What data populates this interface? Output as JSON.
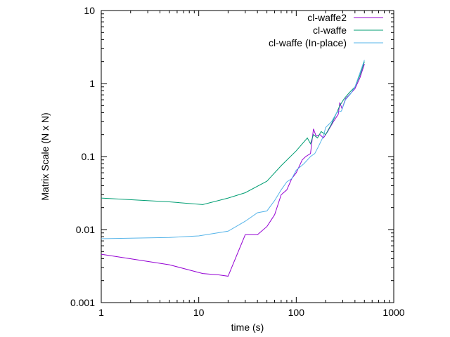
{
  "chart_data": {
    "type": "line",
    "xlabel": "time (s)",
    "ylabel": "Matrix Scale (N x N)",
    "xscale": "log",
    "yscale": "log",
    "xlim": [
      1,
      1000
    ],
    "ylim": [
      0.001,
      10
    ],
    "xticks": [
      {
        "value": 1,
        "label": "1"
      },
      {
        "value": 10,
        "label": "10"
      },
      {
        "value": 100,
        "label": "100"
      },
      {
        "value": 1000,
        "label": "1000"
      }
    ],
    "yticks": [
      {
        "value": 0.001,
        "label": "0.001"
      },
      {
        "value": 0.01,
        "label": "0.01"
      },
      {
        "value": 0.1,
        "label": "0.1"
      },
      {
        "value": 1,
        "label": "1"
      },
      {
        "value": 10,
        "label": "10"
      }
    ],
    "grid": false,
    "legend_position": "top-right",
    "series": [
      {
        "name": "cl-waffe2",
        "color": "#9400d3",
        "points": [
          [
            1,
            0.0046
          ],
          [
            5,
            0.0033
          ],
          [
            11,
            0.0025
          ],
          [
            16,
            0.0024
          ],
          [
            20,
            0.0023
          ],
          [
            30,
            0.0085
          ],
          [
            40,
            0.0085
          ],
          [
            50,
            0.011
          ],
          [
            60,
            0.016
          ],
          [
            70,
            0.03
          ],
          [
            80,
            0.035
          ],
          [
            90,
            0.05
          ],
          [
            100,
            0.06
          ],
          [
            115,
            0.09
          ],
          [
            125,
            0.1
          ],
          [
            140,
            0.11
          ],
          [
            150,
            0.24
          ],
          [
            160,
            0.19
          ],
          [
            175,
            0.2
          ],
          [
            190,
            0.18
          ],
          [
            210,
            0.22
          ],
          [
            240,
            0.3
          ],
          [
            270,
            0.38
          ],
          [
            280,
            0.55
          ],
          [
            295,
            0.45
          ],
          [
            320,
            0.62
          ],
          [
            350,
            0.7
          ],
          [
            400,
            0.85
          ],
          [
            450,
            1.2
          ],
          [
            500,
            1.85
          ]
        ]
      },
      {
        "name": "cl-waffe",
        "color": "#009e73",
        "points": [
          [
            1,
            0.027
          ],
          [
            5,
            0.024
          ],
          [
            11,
            0.022
          ],
          [
            20,
            0.027
          ],
          [
            30,
            0.032
          ],
          [
            50,
            0.046
          ],
          [
            70,
            0.075
          ],
          [
            100,
            0.12
          ],
          [
            130,
            0.18
          ],
          [
            140,
            0.15
          ],
          [
            150,
            0.2
          ],
          [
            165,
            0.18
          ],
          [
            180,
            0.22
          ],
          [
            200,
            0.2
          ],
          [
            230,
            0.28
          ],
          [
            260,
            0.4
          ],
          [
            280,
            0.5
          ],
          [
            310,
            0.62
          ],
          [
            350,
            0.75
          ],
          [
            400,
            0.9
          ],
          [
            450,
            1.3
          ],
          [
            500,
            2.0
          ]
        ]
      },
      {
        "name": "cl-waffe (In-place)",
        "color": "#56b4e9",
        "points": [
          [
            1,
            0.0075
          ],
          [
            5,
            0.0078
          ],
          [
            10,
            0.0082
          ],
          [
            20,
            0.0095
          ],
          [
            30,
            0.013
          ],
          [
            40,
            0.017
          ],
          [
            50,
            0.018
          ],
          [
            60,
            0.025
          ],
          [
            70,
            0.035
          ],
          [
            80,
            0.045
          ],
          [
            90,
            0.05
          ],
          [
            100,
            0.065
          ],
          [
            120,
            0.08
          ],
          [
            140,
            0.1
          ],
          [
            155,
            0.11
          ],
          [
            170,
            0.14
          ],
          [
            190,
            0.19
          ],
          [
            200,
            0.25
          ],
          [
            230,
            0.3
          ],
          [
            260,
            0.4
          ],
          [
            290,
            0.42
          ],
          [
            320,
            0.6
          ],
          [
            360,
            0.72
          ],
          [
            400,
            0.9
          ],
          [
            450,
            1.4
          ],
          [
            500,
            2.1
          ]
        ]
      }
    ]
  }
}
